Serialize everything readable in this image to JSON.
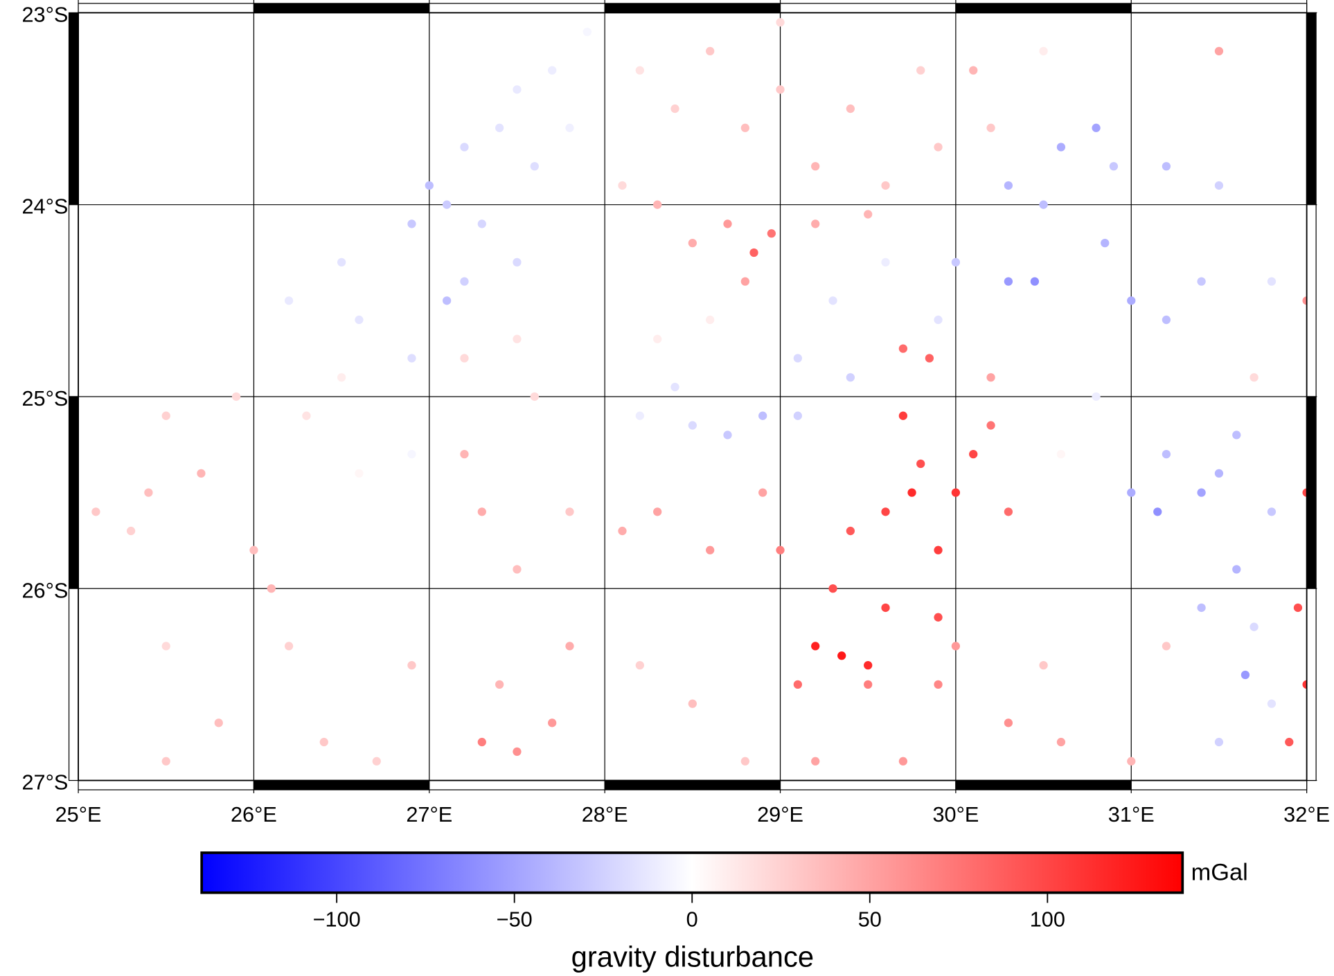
{
  "chart_data": {
    "type": "scatter",
    "x": [
      26.9,
      27.0,
      27.1,
      27.2,
      27.4,
      27.5,
      27.7,
      27.6,
      27.3,
      27.8,
      27.2,
      27.5,
      26.5,
      26.2,
      26.6,
      26.9,
      27.9,
      27.1,
      28.2,
      28.4,
      28.6,
      28.8,
      29.0,
      29.2,
      29.4,
      29.6,
      29.8,
      29.9,
      28.3,
      28.5,
      28.7,
      28.85,
      28.95,
      28.8,
      29.2,
      29.5,
      28.1,
      29.0,
      30.1,
      30.2,
      30.5,
      31.5,
      30.3,
      30.6,
      30.8,
      30.5,
      30.9,
      31.2,
      31.5,
      30.0,
      30.3,
      30.45,
      30.85,
      31.0,
      31.2,
      29.9,
      29.6,
      29.3,
      29.1,
      29.4,
      29.7,
      29.85,
      30.2,
      27.2,
      27.5,
      27.6,
      27.2,
      27.3,
      27.5,
      27.8,
      28.3,
      28.6,
      28.2,
      28.5,
      28.7,
      28.9,
      29.1,
      28.4,
      25.1,
      25.4,
      25.7,
      25.5,
      25.9,
      26.3,
      26.6,
      26.9,
      26.5,
      25.3,
      26.0,
      26.2,
      25.5,
      25.8,
      26.4,
      25.5,
      26.7,
      26.9,
      26.1,
      29.4,
      29.6,
      29.75,
      29.9,
      30.0,
      30.1,
      29.7,
      29.8,
      29.3,
      29.6,
      29.2,
      29.35,
      29.5,
      29.9,
      30.3,
      30.2,
      29.0,
      28.6,
      28.3,
      28.1,
      28.9,
      29.1,
      29.5,
      29.9,
      30.3,
      30.6,
      31.0,
      28.5,
      28.2,
      28.8,
      27.8,
      27.4,
      27.3,
      27.5,
      27.7,
      29.2,
      29.7,
      30.0,
      30.5,
      31.2,
      31.2,
      31.4,
      31.0,
      31.15,
      31.5,
      31.6,
      31.8,
      31.6,
      31.4,
      31.7,
      31.65,
      31.8,
      31.5,
      32.0,
      31.95,
      32.0,
      31.9,
      31.4,
      31.8,
      31.7,
      32.0,
      30.6,
      30.8
    ],
    "y": [
      -24.1,
      -23.9,
      -24.0,
      -23.7,
      -23.6,
      -23.4,
      -23.3,
      -23.8,
      -24.1,
      -23.6,
      -24.4,
      -24.3,
      -24.3,
      -24.5,
      -24.6,
      -24.8,
      -23.1,
      -24.5,
      -23.3,
      -23.5,
      -23.2,
      -23.6,
      -23.4,
      -23.8,
      -23.5,
      -23.9,
      -23.3,
      -23.7,
      -24.0,
      -24.2,
      -24.1,
      -24.25,
      -24.15,
      -24.4,
      -24.1,
      -24.05,
      -23.9,
      -23.05,
      -23.3,
      -23.6,
      -23.2,
      -23.2,
      -23.9,
      -23.7,
      -23.6,
      -24.0,
      -23.8,
      -23.8,
      -23.9,
      -24.3,
      -24.4,
      -24.4,
      -24.2,
      -24.5,
      -24.6,
      -24.6,
      -24.3,
      -24.5,
      -24.8,
      -24.9,
      -24.75,
      -24.8,
      -24.9,
      -24.8,
      -24.7,
      -25.0,
      -25.3,
      -25.6,
      -25.9,
      -25.6,
      -24.7,
      -24.6,
      -25.1,
      -25.15,
      -25.2,
      -25.1,
      -25.1,
      -24.95,
      -25.6,
      -25.5,
      -25.4,
      -25.1,
      -25.0,
      -25.1,
      -25.4,
      -25.3,
      -24.9,
      -25.7,
      -25.8,
      -26.3,
      -26.3,
      -26.7,
      -26.8,
      -26.9,
      -26.9,
      -26.4,
      -26.0,
      -25.7,
      -25.6,
      -25.5,
      -25.8,
      -25.5,
      -25.3,
      -25.1,
      -25.35,
      -26.0,
      -26.1,
      -26.3,
      -26.35,
      -26.4,
      -26.15,
      -25.6,
      -25.15,
      -25.8,
      -25.8,
      -25.6,
      -25.7,
      -25.5,
      -26.5,
      -26.5,
      -26.5,
      -26.7,
      -26.8,
      -26.9,
      -26.6,
      -26.4,
      -26.9,
      -26.3,
      -26.5,
      -26.8,
      -26.85,
      -26.7,
      -26.9,
      -26.9,
      -26.3,
      -26.4,
      -26.3,
      -25.3,
      -25.5,
      -25.5,
      -25.6,
      -25.4,
      -25.2,
      -25.6,
      -25.9,
      -26.1,
      -26.2,
      -26.45,
      -26.6,
      -26.8,
      -25.5,
      -26.1,
      -26.5,
      -26.8,
      -24.4,
      -24.4,
      -24.9,
      -24.5,
      -25.3,
      -25.0
    ],
    "values": [
      -30,
      -35,
      -28,
      -20,
      -15,
      -12,
      -10,
      -18,
      -22,
      -8,
      -25,
      -20,
      -15,
      -12,
      -14,
      -18,
      -5,
      -35,
      15,
      25,
      30,
      35,
      30,
      40,
      35,
      30,
      25,
      30,
      40,
      45,
      55,
      85,
      75,
      50,
      45,
      40,
      20,
      20,
      40,
      30,
      10,
      50,
      -40,
      -45,
      -50,
      -35,
      -30,
      -35,
      -25,
      -30,
      -55,
      -60,
      -40,
      -45,
      -35,
      -15,
      -10,
      -15,
      -20,
      -25,
      80,
      85,
      50,
      20,
      15,
      20,
      40,
      45,
      35,
      30,
      10,
      10,
      -10,
      -20,
      -30,
      -35,
      -25,
      -15,
      30,
      35,
      40,
      25,
      20,
      15,
      5,
      -5,
      10,
      25,
      35,
      25,
      20,
      35,
      30,
      30,
      25,
      30,
      40,
      90,
      100,
      115,
      105,
      110,
      100,
      105,
      95,
      95,
      100,
      120,
      125,
      115,
      95,
      80,
      75,
      70,
      55,
      50,
      45,
      50,
      80,
      70,
      65,
      60,
      50,
      40,
      35,
      25,
      30,
      45,
      40,
      70,
      60,
      55,
      50,
      55,
      55,
      30,
      30,
      -35,
      -50,
      -45,
      -60,
      -40,
      -35,
      -30,
      -40,
      -35,
      -20,
      -55,
      -15,
      -25,
      100,
      95,
      110,
      90,
      -30,
      -15,
      20,
      60,
      5,
      -10
    ],
    "xlim": [
      25,
      32
    ],
    "ylim": [
      -27,
      -23
    ],
    "xticks": [
      {
        "value": 25,
        "label": "25°E"
      },
      {
        "value": 26,
        "label": "26°E"
      },
      {
        "value": 27,
        "label": "27°E"
      },
      {
        "value": 28,
        "label": "28°E"
      },
      {
        "value": 29,
        "label": "29°E"
      },
      {
        "value": 30,
        "label": "30°E"
      },
      {
        "value": 31,
        "label": "31°E"
      },
      {
        "value": 32,
        "label": "32°E"
      }
    ],
    "yticks": [
      {
        "value": -23,
        "label": "23°S"
      },
      {
        "value": -24,
        "label": "24°S"
      },
      {
        "value": -25,
        "label": "25°S"
      },
      {
        "value": -26,
        "label": "26°S"
      },
      {
        "value": -27,
        "label": "27°S"
      }
    ],
    "grid": true,
    "cmap": [
      "#0000ff",
      "#ffffff",
      "#ff0000"
    ],
    "clim": [
      -138,
      138
    ],
    "cticks": [
      {
        "value": -100,
        "label": "−100"
      },
      {
        "value": -50,
        "label": "−50"
      },
      0,
      50,
      100
    ],
    "colorbar_label": "gravity disturbance",
    "colorbar_unit": "mGal"
  }
}
